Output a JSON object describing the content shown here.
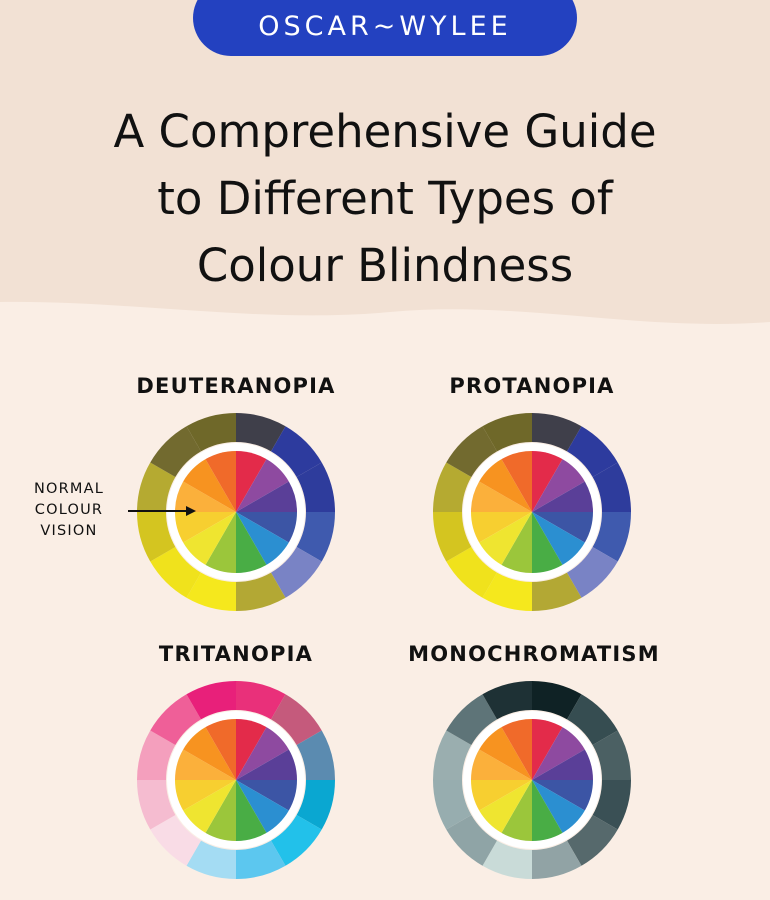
{
  "brand": {
    "logo_text": "OSCAR~WYLEE",
    "pill_color": "#2341c0"
  },
  "title": {
    "lines": [
      "A Comprehensive Guide",
      "to Different Types of",
      "Colour Blindness"
    ]
  },
  "annotation": {
    "lines": [
      "NORMAL",
      "COLOUR",
      "VISION"
    ]
  },
  "inner_wheel": {
    "colors": [
      "#e32b4a",
      "#8e4aa0",
      "#5a3f98",
      "#3c55a5",
      "#2b8fd1",
      "#49ad45",
      "#9bc63b",
      "#efe530",
      "#f7cf30",
      "#fbb03b",
      "#f79320",
      "#f06a2a"
    ]
  },
  "wheels": [
    {
      "label": "DEUTERANOPIA",
      "outer_colors": [
        "#3f3f4a",
        "#2d3b9e",
        "#2e3c9c",
        "#3f5aae",
        "#7983c5",
        "#b3a834",
        "#f5e81d",
        "#f0e21c",
        "#d4c520",
        "#b5aa31",
        "#726a2f",
        "#6f6829"
      ]
    },
    {
      "label": "PROTANOPIA",
      "outer_colors": [
        "#3f3f4a",
        "#2d3b9e",
        "#2e3c9c",
        "#3f5aae",
        "#7983c5",
        "#b3a834",
        "#f5e81d",
        "#f0e21c",
        "#d4c520",
        "#b5aa31",
        "#726a2f",
        "#6f6829"
      ]
    },
    {
      "label": "TRITANOPIA",
      "outer_colors": [
        "#e9307a",
        "#c55a7c",
        "#5b8bb0",
        "#0aa7d1",
        "#22c1ea",
        "#5cc7ef",
        "#a4dcf3",
        "#f9dce6",
        "#f5bcd0",
        "#f49fbd",
        "#ef5f98",
        "#e8207a"
      ]
    },
    {
      "label": "MONOCHROMATISM",
      "outer_colors": [
        "#0f2225",
        "#364d51",
        "#4b6063",
        "#3a5055",
        "#56696c",
        "#91a3a5",
        "#c9dbd8",
        "#8fa4a6",
        "#97adaf",
        "#9aaeaf",
        "#5e7478",
        "#1e3135"
      ]
    }
  ]
}
